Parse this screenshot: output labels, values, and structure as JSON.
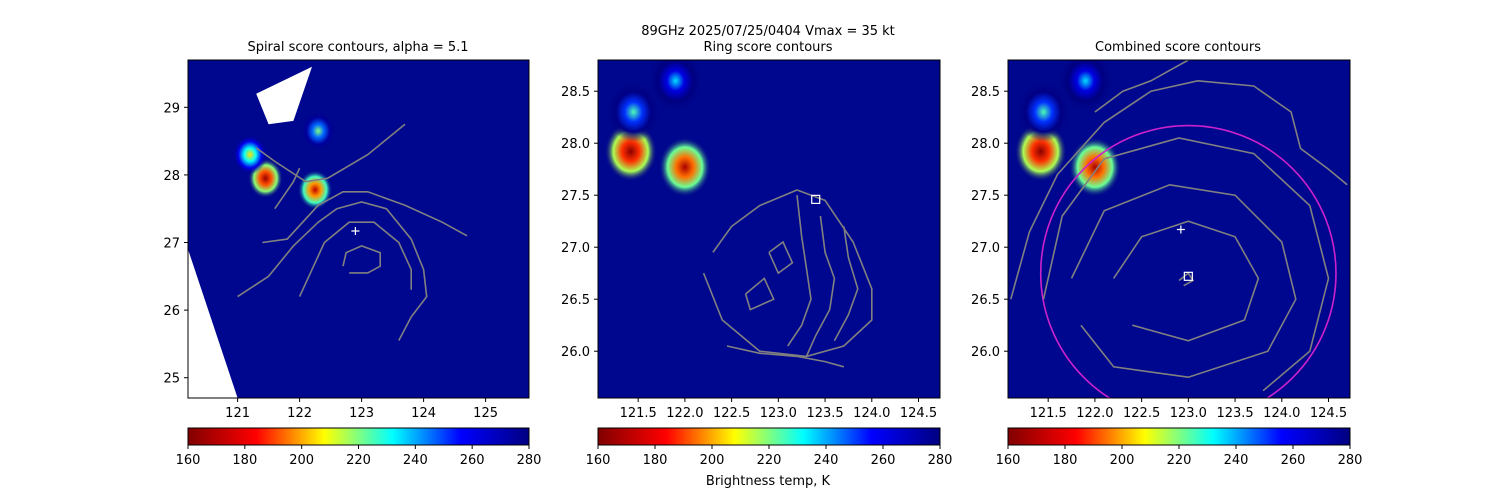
{
  "figure": {
    "suptitle_line1": "89GHz  2025/07/25/0404    Vmax = 35 kt",
    "colorbar_label": "Brightness temp, K"
  },
  "colormap": {
    "name": "jet",
    "stops": [
      "#800000",
      "#ff0000",
      "#ffff00",
      "#00ffff",
      "#0000ff",
      "#000080"
    ],
    "background_low_tb": "#00078f"
  },
  "colors": {
    "contour": "#808080",
    "radius_circle": "#cc22cc",
    "center_marker": "#ffffff",
    "missing_data": "#ffffff"
  },
  "chart_data": [
    {
      "type": "heatmap",
      "title": "Spiral score contours, alpha =  5.1",
      "xlim": [
        120.2,
        125.7
      ],
      "ylim": [
        24.7,
        29.7
      ],
      "xticks": [
        121,
        122,
        123,
        124,
        125
      ],
      "yticks": [
        25,
        26,
        27,
        28,
        29
      ],
      "tick_decimals": 0,
      "center_marker": {
        "x": 122.9,
        "y": 27.17,
        "symbol": "+"
      },
      "hot_spots": [
        {
          "x": 121.45,
          "y": 27.95,
          "tb": 165
        },
        {
          "x": 122.25,
          "y": 27.78,
          "tb": 172
        },
        {
          "x": 121.2,
          "y": 28.3,
          "tb": 205
        },
        {
          "x": 122.3,
          "y": 28.65,
          "tb": 220
        }
      ],
      "contours": [
        [
          [
            122.8,
            26.55
          ],
          [
            123.1,
            26.55
          ],
          [
            123.3,
            26.65
          ],
          [
            123.3,
            26.85
          ],
          [
            123.0,
            26.95
          ],
          [
            122.75,
            26.85
          ],
          [
            122.7,
            26.65
          ]
        ],
        [
          [
            121.4,
            27.0
          ],
          [
            121.8,
            27.05
          ],
          [
            122.3,
            27.55
          ],
          [
            122.7,
            27.75
          ],
          [
            123.1,
            27.75
          ],
          [
            123.7,
            27.55
          ],
          [
            124.3,
            27.3
          ],
          [
            124.7,
            27.1
          ]
        ],
        [
          [
            121.0,
            26.2
          ],
          [
            121.5,
            26.5
          ],
          [
            121.9,
            26.95
          ],
          [
            122.3,
            27.3
          ],
          [
            122.6,
            27.5
          ],
          [
            123.0,
            27.6
          ],
          [
            123.4,
            27.5
          ],
          [
            123.8,
            27.05
          ],
          [
            124.0,
            26.6
          ],
          [
            124.05,
            26.2
          ],
          [
            123.8,
            25.9
          ],
          [
            123.6,
            25.55
          ]
        ],
        [
          [
            122.0,
            26.2
          ],
          [
            122.2,
            26.6
          ],
          [
            122.4,
            27.0
          ],
          [
            122.8,
            27.3
          ],
          [
            123.2,
            27.3
          ],
          [
            123.6,
            27.0
          ],
          [
            123.8,
            26.6
          ],
          [
            123.8,
            26.3
          ]
        ],
        [
          [
            121.3,
            28.4
          ],
          [
            121.6,
            28.2
          ],
          [
            122.1,
            27.9
          ],
          [
            122.45,
            27.95
          ],
          [
            123.1,
            28.3
          ],
          [
            123.7,
            28.75
          ]
        ],
        [
          [
            121.6,
            27.5
          ],
          [
            121.9,
            27.9
          ],
          [
            122.0,
            28.1
          ]
        ]
      ],
      "squares": []
    },
    {
      "type": "heatmap",
      "title": "Ring score contours",
      "xlim": [
        121.07,
        124.73
      ],
      "ylim": [
        25.55,
        28.8
      ],
      "xticks": [
        121.5,
        122.0,
        122.5,
        123.0,
        123.5,
        124.0,
        124.5
      ],
      "yticks": [
        26.0,
        26.5,
        27.0,
        27.5,
        28.0,
        28.5
      ],
      "tick_decimals": 1,
      "center_marker": null,
      "hot_spots": [
        {
          "x": 121.42,
          "y": 27.92,
          "tb": 162
        },
        {
          "x": 121.45,
          "y": 28.3,
          "tb": 225
        },
        {
          "x": 122.0,
          "y": 27.77,
          "tb": 168
        },
        {
          "x": 121.9,
          "y": 28.6,
          "tb": 235
        }
      ],
      "contours": [
        [
          [
            122.3,
            26.95
          ],
          [
            122.5,
            27.2
          ],
          [
            122.8,
            27.4
          ],
          [
            123.2,
            27.55
          ],
          [
            123.5,
            27.45
          ],
          [
            123.8,
            27.05
          ],
          [
            124.0,
            26.6
          ],
          [
            124.0,
            26.3
          ],
          [
            123.7,
            26.05
          ],
          [
            123.3,
            25.95
          ],
          [
            122.8,
            26.0
          ],
          [
            122.4,
            26.3
          ],
          [
            122.2,
            26.75
          ]
        ],
        [
          [
            123.2,
            27.5
          ],
          [
            123.25,
            27.1
          ],
          [
            123.3,
            26.8
          ],
          [
            123.35,
            26.5
          ],
          [
            123.25,
            26.25
          ],
          [
            123.1,
            26.05
          ]
        ],
        [
          [
            123.45,
            27.3
          ],
          [
            123.5,
            26.95
          ],
          [
            123.6,
            26.7
          ],
          [
            123.55,
            26.4
          ],
          [
            123.4,
            26.15
          ],
          [
            123.3,
            25.95
          ]
        ],
        [
          [
            123.7,
            27.2
          ],
          [
            123.75,
            26.9
          ],
          [
            123.85,
            26.6
          ],
          [
            123.75,
            26.35
          ],
          [
            123.6,
            26.1
          ]
        ],
        [
          [
            122.45,
            26.05
          ],
          [
            122.8,
            25.98
          ],
          [
            123.2,
            25.95
          ],
          [
            123.5,
            25.9
          ],
          [
            123.7,
            25.85
          ]
        ],
        [
          [
            122.9,
            26.95
          ],
          [
            123.05,
            27.05
          ],
          [
            123.15,
            26.85
          ],
          [
            123.0,
            26.75
          ],
          [
            122.9,
            26.95
          ]
        ],
        [
          [
            122.65,
            26.55
          ],
          [
            122.85,
            26.7
          ],
          [
            122.95,
            26.5
          ],
          [
            122.7,
            26.4
          ],
          [
            122.65,
            26.55
          ]
        ]
      ],
      "squares": [
        {
          "x": 123.4,
          "y": 27.46
        }
      ]
    },
    {
      "type": "heatmap",
      "title": "Combined score contours",
      "xlim": [
        121.07,
        124.73
      ],
      "ylim": [
        25.55,
        28.8
      ],
      "xticks": [
        121.5,
        122.0,
        122.5,
        123.0,
        123.5,
        124.0,
        124.5
      ],
      "yticks": [
        26.0,
        26.5,
        27.0,
        27.5,
        28.0,
        28.5
      ],
      "tick_decimals": 1,
      "center_marker": {
        "x": 122.92,
        "y": 27.17,
        "symbol": "+"
      },
      "hot_spots": [
        {
          "x": 121.42,
          "y": 27.92,
          "tb": 162
        },
        {
          "x": 121.45,
          "y": 28.3,
          "tb": 225
        },
        {
          "x": 122.0,
          "y": 27.77,
          "tb": 168
        },
        {
          "x": 121.9,
          "y": 28.6,
          "tb": 235
        }
      ],
      "circle": {
        "cx": 123.0,
        "cy": 26.75,
        "r": 1.58
      },
      "contours": [
        [
          [
            122.9,
            26.68
          ],
          [
            123.0,
            26.75
          ],
          [
            123.05,
            26.68
          ],
          [
            122.95,
            26.63
          ]
        ],
        [
          [
            122.2,
            26.7
          ],
          [
            122.5,
            27.1
          ],
          [
            123.0,
            27.25
          ],
          [
            123.5,
            27.1
          ],
          [
            123.75,
            26.7
          ],
          [
            123.6,
            26.3
          ],
          [
            123.0,
            26.1
          ],
          [
            122.4,
            26.25
          ]
        ],
        [
          [
            121.75,
            26.7
          ],
          [
            122.1,
            27.35
          ],
          [
            122.8,
            27.6
          ],
          [
            123.5,
            27.5
          ],
          [
            124.0,
            27.05
          ],
          [
            124.15,
            26.5
          ],
          [
            123.85,
            26.0
          ],
          [
            123.0,
            25.75
          ],
          [
            122.2,
            25.85
          ],
          [
            121.85,
            26.25
          ]
        ],
        [
          [
            121.45,
            26.5
          ],
          [
            121.65,
            27.3
          ],
          [
            122.1,
            27.85
          ],
          [
            122.9,
            28.05
          ],
          [
            123.7,
            27.9
          ],
          [
            124.3,
            27.4
          ],
          [
            124.5,
            26.7
          ],
          [
            124.3,
            26.0
          ],
          [
            123.8,
            25.62
          ]
        ],
        [
          [
            121.1,
            26.5
          ],
          [
            121.3,
            27.15
          ],
          [
            121.6,
            27.7
          ],
          [
            122.1,
            28.2
          ],
          [
            122.6,
            28.5
          ],
          [
            123.1,
            28.6
          ],
          [
            123.7,
            28.55
          ],
          [
            124.1,
            28.3
          ],
          [
            124.2,
            27.95
          ],
          [
            124.5,
            27.75
          ],
          [
            124.7,
            27.6
          ]
        ],
        [
          [
            122.0,
            28.3
          ],
          [
            122.3,
            28.5
          ],
          [
            122.6,
            28.6
          ],
          [
            123.0,
            28.8
          ]
        ]
      ],
      "squares": [
        {
          "x": 123.0,
          "y": 26.72
        }
      ]
    }
  ],
  "colorbars": [
    {
      "ticks": [
        160,
        180,
        200,
        220,
        240,
        260,
        280
      ],
      "range": [
        160,
        280
      ]
    },
    {
      "ticks": [
        160,
        180,
        200,
        220,
        240,
        260,
        280
      ],
      "range": [
        160,
        280
      ]
    },
    {
      "ticks": [
        160,
        180,
        200,
        220,
        240,
        260,
        280
      ],
      "range": [
        160,
        280
      ]
    }
  ]
}
